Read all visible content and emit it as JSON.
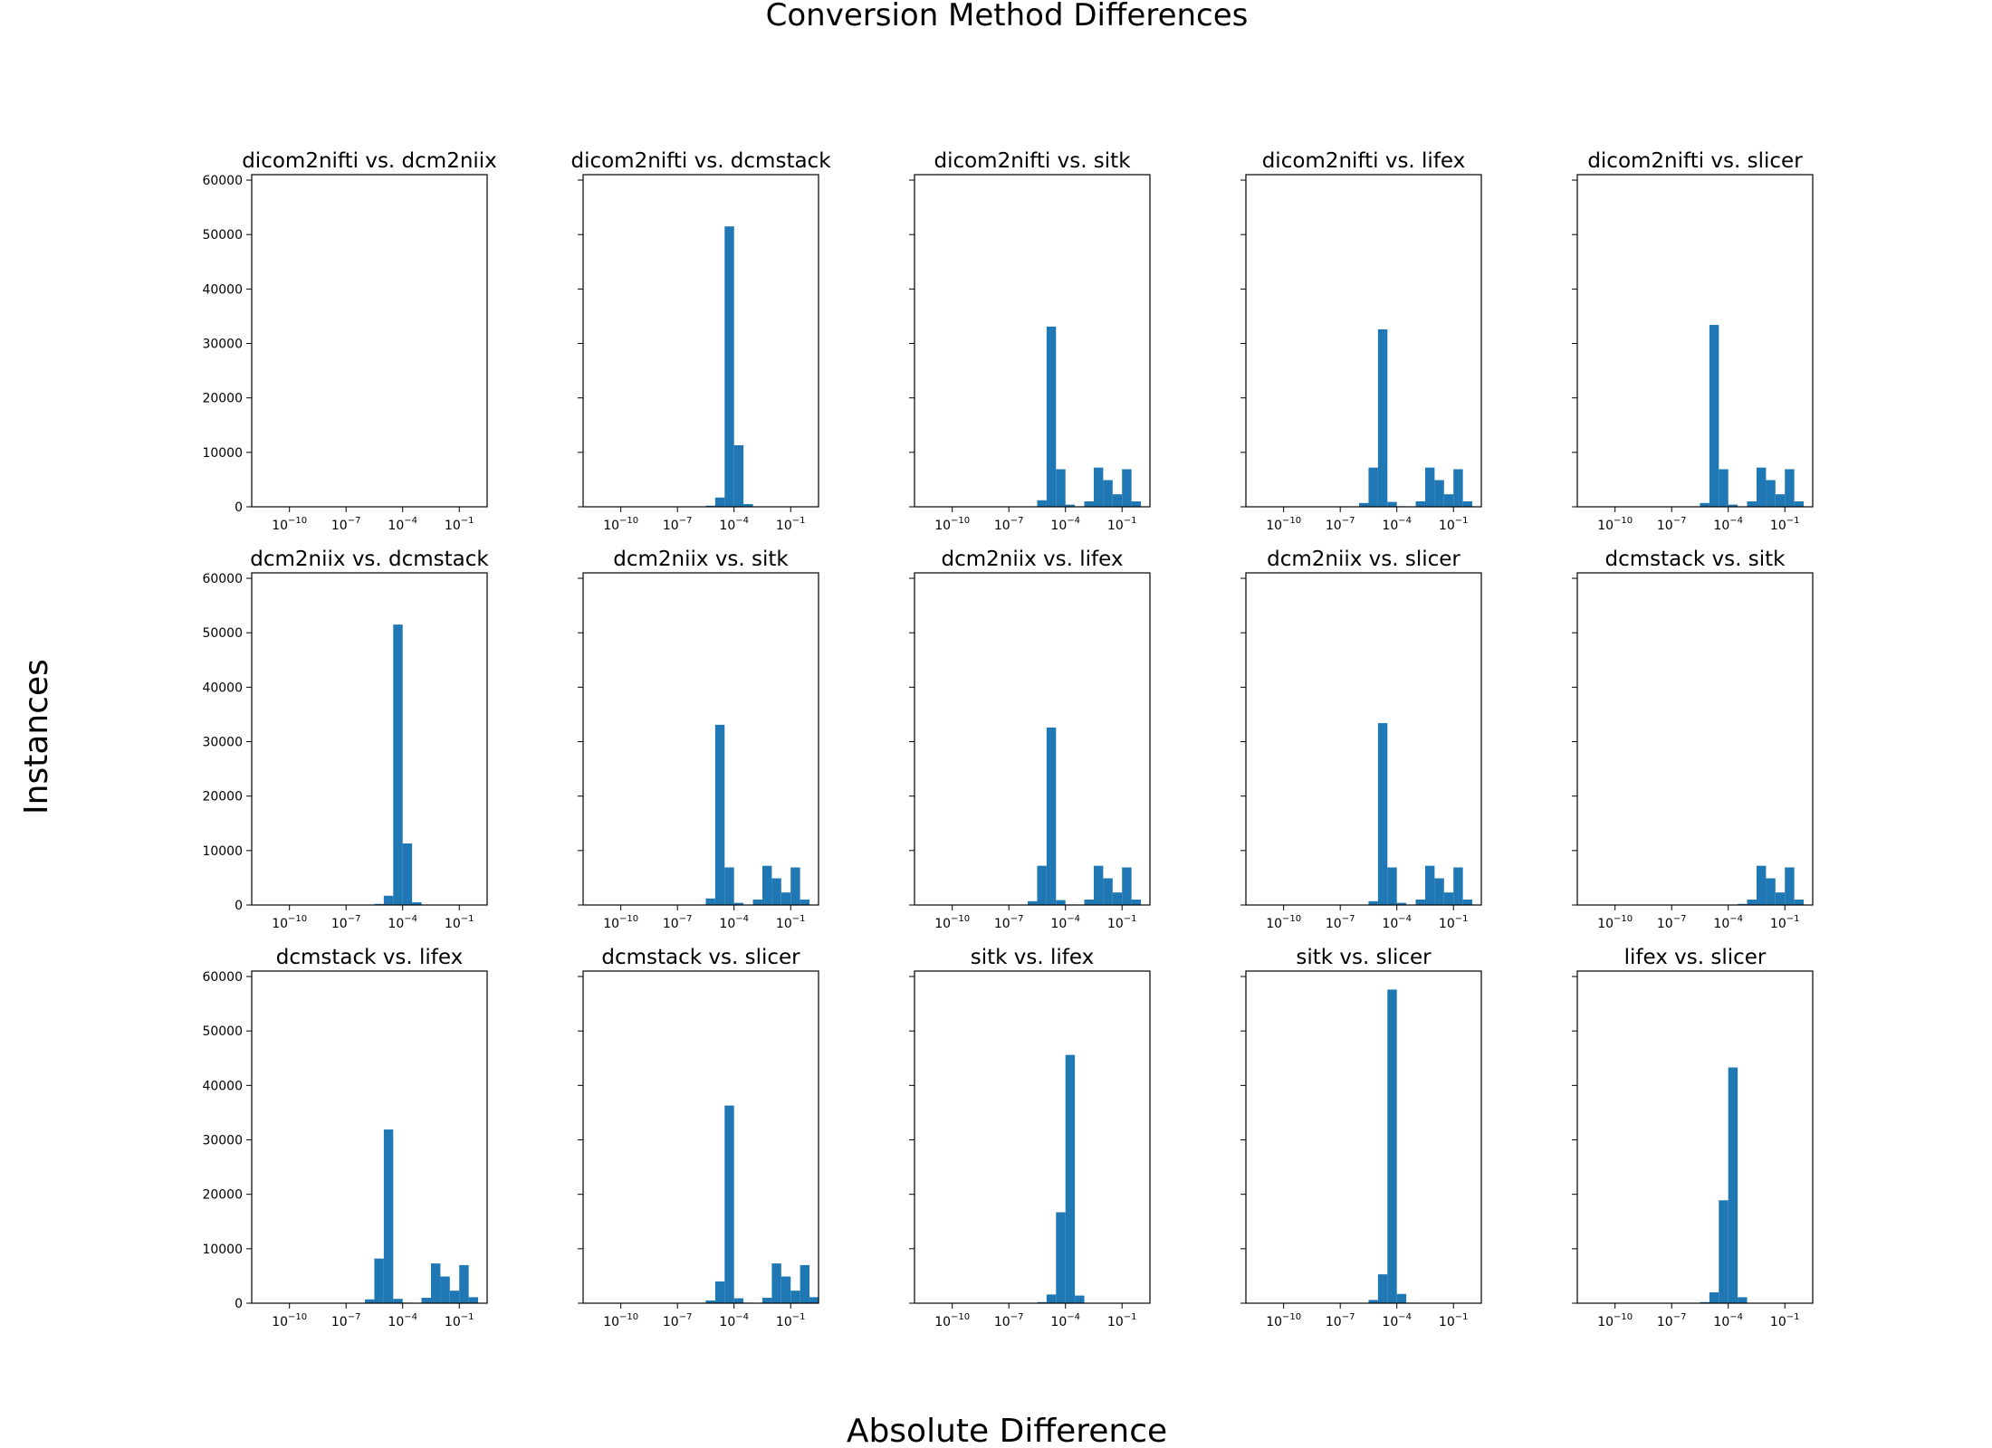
{
  "figure": {
    "title": "Conversion Method Differences",
    "xlabel": "Absolute Difference",
    "ylabel": "Instances"
  },
  "chart_data": {
    "type": "bar",
    "layout": "grid 3x5, shared y-axis",
    "x_scale": "log",
    "xlim": [
      1e-12,
      3
    ],
    "ylim": [
      0,
      61000
    ],
    "yticks": [
      0,
      10000,
      20000,
      30000,
      40000,
      50000,
      60000
    ],
    "xticks": [
      {
        "value": 1e-10,
        "base": "10",
        "exp": "−10"
      },
      {
        "value": 1e-07,
        "base": "10",
        "exp": "−7"
      },
      {
        "value": 0.0001,
        "base": "10",
        "exp": "−4"
      },
      {
        "value": 0.1,
        "base": "10",
        "exp": "−1"
      }
    ],
    "bin_edges_log10": [
      -11,
      -10.5,
      -10,
      -9.5,
      -9,
      -8.5,
      -8,
      -7.5,
      -7,
      -6.5,
      -6,
      -5.5,
      -5,
      -4.5,
      -4,
      -3.5,
      -3,
      -2.5,
      -2,
      -1.5,
      -1,
      -0.5,
      0,
      0.5
    ],
    "panels": [
      {
        "title": "dicom2nifti vs. dcm2niix",
        "values": [
          0,
          0,
          0,
          0,
          0,
          0,
          0,
          0,
          0,
          0,
          0,
          0,
          0,
          0,
          0,
          0,
          0,
          0,
          0,
          0,
          0,
          0,
          0
        ]
      },
      {
        "title": "dicom2nifti vs. dcmstack",
        "values": [
          0,
          0,
          0,
          0,
          0,
          0,
          0,
          0,
          0,
          0,
          0,
          200,
          1700,
          51500,
          11300,
          500,
          0,
          0,
          0,
          0,
          0,
          0,
          0
        ]
      },
      {
        "title": "dicom2nifti vs. sitk",
        "values": [
          0,
          0,
          0,
          0,
          0,
          0,
          0,
          0,
          0,
          0,
          0,
          1200,
          33100,
          6900,
          400,
          0,
          1000,
          7200,
          4900,
          2300,
          6900,
          1000,
          0
        ]
      },
      {
        "title": "dicom2nifti vs. lifex",
        "values": [
          0,
          0,
          0,
          0,
          0,
          0,
          0,
          0,
          0,
          0,
          700,
          7200,
          32600,
          900,
          100,
          0,
          1000,
          7200,
          4900,
          2300,
          6900,
          1000,
          0
        ]
      },
      {
        "title": "dicom2nifti vs. slicer",
        "values": [
          0,
          0,
          0,
          0,
          0,
          0,
          0,
          0,
          0,
          0,
          0,
          700,
          33400,
          6900,
          400,
          0,
          1000,
          7200,
          4900,
          2300,
          6900,
          1000,
          0
        ]
      },
      {
        "title": "dcm2niix vs. dcmstack",
        "values": [
          0,
          0,
          0,
          0,
          0,
          0,
          0,
          0,
          0,
          0,
          0,
          200,
          1700,
          51500,
          11300,
          500,
          0,
          0,
          0,
          0,
          0,
          0,
          0
        ]
      },
      {
        "title": "dcm2niix vs. sitk",
        "values": [
          0,
          0,
          0,
          0,
          0,
          0,
          0,
          0,
          0,
          0,
          0,
          1200,
          33100,
          6900,
          400,
          0,
          1000,
          7200,
          4900,
          2300,
          6900,
          1000,
          0
        ]
      },
      {
        "title": "dcm2niix vs. lifex",
        "values": [
          0,
          0,
          0,
          0,
          0,
          0,
          0,
          0,
          0,
          0,
          700,
          7200,
          32600,
          900,
          100,
          0,
          1000,
          7200,
          4900,
          2300,
          6900,
          1000,
          0
        ]
      },
      {
        "title": "dcm2niix vs. slicer",
        "values": [
          0,
          0,
          0,
          0,
          0,
          0,
          0,
          0,
          0,
          0,
          0,
          700,
          33400,
          6900,
          400,
          0,
          1000,
          7200,
          4900,
          2300,
          6900,
          1000,
          0
        ]
      },
      {
        "title": "dcmstack vs. sitk",
        "values": [
          0,
          0,
          0,
          0,
          0,
          0,
          0,
          0,
          0,
          0,
          0,
          0,
          0,
          0,
          0,
          200,
          1000,
          7200,
          4900,
          2300,
          6900,
          1000,
          0
        ]
      },
      {
        "title": "dcmstack vs. lifex",
        "values": [
          0,
          0,
          0,
          0,
          0,
          0,
          0,
          0,
          0,
          0,
          700,
          8200,
          31900,
          800,
          100,
          0,
          1000,
          7300,
          4900,
          2300,
          7000,
          1100,
          0
        ]
      },
      {
        "title": "dcmstack vs. slicer",
        "values": [
          0,
          0,
          0,
          0,
          0,
          0,
          0,
          0,
          0,
          0,
          0,
          500,
          4000,
          36300,
          900,
          100,
          0,
          1000,
          7300,
          4900,
          2300,
          7000,
          1100
        ]
      },
      {
        "title": "sitk vs. lifex",
        "values": [
          0,
          0,
          0,
          0,
          0,
          0,
          0,
          0,
          0,
          0,
          0,
          200,
          1600,
          16700,
          45600,
          1400,
          0,
          0,
          0,
          0,
          0,
          0,
          0
        ]
      },
      {
        "title": "sitk vs. slicer",
        "values": [
          0,
          0,
          0,
          0,
          0,
          0,
          0,
          0,
          0,
          0,
          0,
          600,
          5300,
          57600,
          1700,
          100,
          0,
          0,
          0,
          0,
          0,
          0,
          0
        ]
      },
      {
        "title": "lifex vs. slicer",
        "values": [
          0,
          0,
          0,
          0,
          0,
          0,
          0,
          0,
          0,
          0,
          0,
          200,
          2000,
          18900,
          43300,
          1100,
          0,
          0,
          0,
          0,
          0,
          0,
          0
        ]
      }
    ],
    "colors": {
      "bar": "#1f77b4",
      "axes": "#000000"
    },
    "grid": false
  }
}
